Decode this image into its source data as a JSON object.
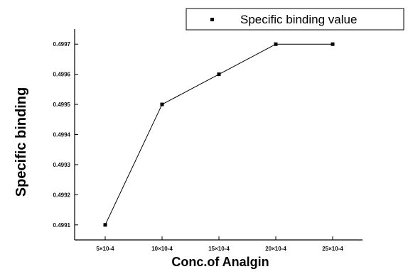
{
  "chart_data": {
    "type": "line",
    "xlabel": "Conc.of Analgin",
    "ylabel": "Specific binding",
    "categories": [
      "5×10-4",
      "10×10-4",
      "15×10-4",
      "20×10-4",
      "25×10-4"
    ],
    "series": [
      {
        "name": "Specific binding value",
        "values": [
          0.4991,
          0.4995,
          0.4996,
          0.4997,
          0.4997
        ],
        "color": "#000000",
        "marker": "square"
      }
    ],
    "yticks": [
      "0.4991",
      "0.4992",
      "0.4993",
      "0.4994",
      "0.4995",
      "0.4996",
      "0.4997"
    ],
    "ylim": [
      0.49905,
      0.49975
    ],
    "grid": false,
    "legend": "top-right"
  }
}
